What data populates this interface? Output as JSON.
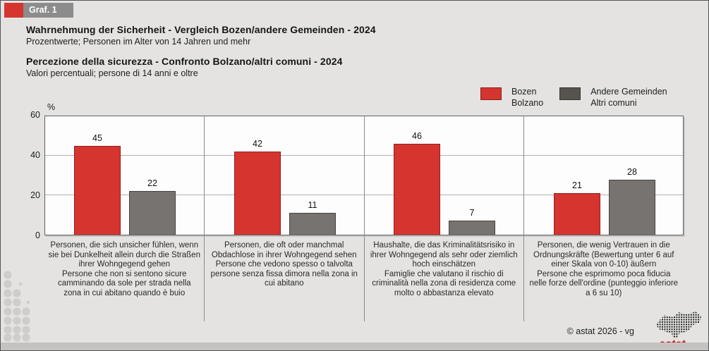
{
  "badge": {
    "label": "Graf. 1"
  },
  "header": {
    "title_de": "Wahrnehmung der Sicherheit - Vergleich Bozen/andere Gemeinden - 2024",
    "subtitle_de": "Prozentwerte; Personen im Alter von 14 Jahren und mehr",
    "title_it": "Percezione della sicurezza - Confronto Bolzano/altri comuni - 2024",
    "subtitle_it": "Valori percentuali; persone di 14 anni e oltre"
  },
  "legend": {
    "bozen": {
      "line1": "Bozen",
      "line2": "Bolzano"
    },
    "andere": {
      "line1": "Andere Gemeinden",
      "line2": "Altri comuni"
    }
  },
  "chart_data": {
    "type": "bar",
    "title": "Wahrnehmung der Sicherheit - Vergleich Bozen/andere Gemeinden - 2024 / Percezione della sicurezza - Confronto Bolzano/altri comuni - 2024",
    "unit": "%",
    "ylabel": "%",
    "ylim": [
      0,
      60
    ],
    "yticks": [
      "0",
      "20",
      "40",
      "60"
    ],
    "grid": true,
    "legend_position": "top-right",
    "categories": [
      {
        "de": "Personen, die sich unsicher fühlen, wenn sie bei Dunkelheit allein durch die Straßen ihrer Wohngegend gehen",
        "it": "Persone che non si sentono sicure camminando da sole per strada nella zona in cui abitano quando è buio"
      },
      {
        "de": "Personen, die oft oder manchmal Obdachlose in ihrer Wohngegend sehen",
        "it": "Persone che vedono spesso o talvolta persone senza fissa dimora nella zona in cui abitano"
      },
      {
        "de": "Haushalte, die das Kriminalitätsrisiko in ihrer Wohngegend als sehr oder ziemlich hoch einschätzen",
        "it": "Famiglie che valutano il rischio di criminalità nella zona di residenza come molto o abbastanza elevato"
      },
      {
        "de": "Personen, die wenig Vertrauen in die Ordnungskräfte (Bewertung unter 6 auf einer Skala von 0-10) äußern",
        "it": "Persone che esprimomo poca fiducia nelle forze dell'ordine (punteggio inferiore a 6 su 10)"
      }
    ],
    "series": [
      {
        "name": "Bozen / Bolzano",
        "color": "#d5342f",
        "values": [
          45,
          42,
          46,
          21
        ]
      },
      {
        "name": "Andere Gemeinden / Altri comuni",
        "color": "#767370",
        "values": [
          22,
          11,
          7,
          28
        ]
      }
    ]
  },
  "footer": {
    "copyright": "© astat 2026 - vg",
    "logo_label": "astat"
  },
  "colors": {
    "accent_red": "#d5342f",
    "bar_gray": "#767370",
    "legend_gray": "#57534f",
    "background": "#e4e3e2"
  }
}
